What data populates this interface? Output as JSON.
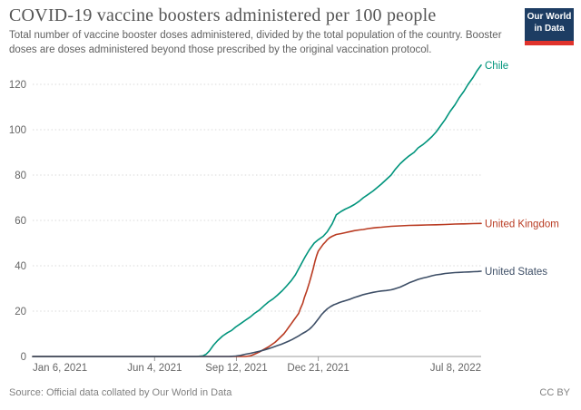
{
  "header": {
    "title": "COVID-19 vaccine boosters administered per 100 people",
    "subtitle": "Total number of vaccine booster doses administered, divided by the total population of the country. Booster doses are doses administered beyond those prescribed by the original vaccination protocol.",
    "logo": {
      "line1": "Our World",
      "line2": "in Data",
      "bg_color": "#1d3d63",
      "stripe_color": "#e0332c"
    }
  },
  "footer": {
    "source": "Source: Official data collated by Our World in Data",
    "license": "CC BY"
  },
  "chart_data": {
    "type": "line",
    "title": "COVID-19 vaccine boosters administered per 100 people",
    "xlabel": "",
    "ylabel": "",
    "ylim": [
      0,
      130
    ],
    "yticks": [
      0,
      20,
      40,
      60,
      80,
      100,
      120
    ],
    "grid": "dotted horizontal gridlines",
    "legend_position": "labels at line ends, right side",
    "x_unit": "days since Jan 6, 2021",
    "x_range_days": 548,
    "x_start_date": "Jan 6, 2021",
    "x_end_date": "Jul 8, 2022",
    "x_axis_labels": [
      {
        "label": "Jan 6, 2021",
        "day": 0,
        "anchor": "start",
        "tick": false
      },
      {
        "label": "Jun 4, 2021",
        "day": 149,
        "anchor": "middle",
        "tick": true
      },
      {
        "label": "Sep 12, 2021",
        "day": 249,
        "anchor": "middle",
        "tick": true
      },
      {
        "label": "Dec 21, 2021",
        "day": 349,
        "anchor": "middle",
        "tick": true
      },
      {
        "label": "Jul 8, 2022",
        "day": 548,
        "anchor": "end",
        "tick": false
      }
    ],
    "axis_colors": {
      "tick_label": "#666666",
      "gridline": "#dadada",
      "axis_line": "#9a9a9a"
    },
    "series": [
      {
        "name": "Chile",
        "color": "#00947C",
        "end_value": 128.5,
        "points": [
          [
            0,
            0
          ],
          [
            200,
            0
          ],
          [
            208,
            0.3
          ],
          [
            212,
            1
          ],
          [
            216,
            2.5
          ],
          [
            221,
            5
          ],
          [
            226,
            7
          ],
          [
            232,
            9
          ],
          [
            238,
            10.5
          ],
          [
            243,
            11.5
          ],
          [
            248,
            13
          ],
          [
            254,
            14.5
          ],
          [
            260,
            16
          ],
          [
            266,
            17.5
          ],
          [
            271,
            19
          ],
          [
            277,
            20.5
          ],
          [
            283,
            22.5
          ],
          [
            288,
            24
          ],
          [
            294,
            25.5
          ],
          [
            299,
            27
          ],
          [
            305,
            29
          ],
          [
            310,
            31
          ],
          [
            316,
            33.5
          ],
          [
            321,
            36
          ],
          [
            327,
            40
          ],
          [
            333,
            44
          ],
          [
            338,
            47
          ],
          [
            344,
            50
          ],
          [
            349,
            51.5
          ],
          [
            355,
            53
          ],
          [
            360,
            55
          ],
          [
            366,
            58.5
          ],
          [
            371,
            62.5
          ],
          [
            377,
            64
          ],
          [
            382,
            65
          ],
          [
            388,
            66
          ],
          [
            393,
            67
          ],
          [
            399,
            68.5
          ],
          [
            404,
            70
          ],
          [
            410,
            71.5
          ],
          [
            416,
            73
          ],
          [
            421,
            74.5
          ],
          [
            426,
            76
          ],
          [
            432,
            78
          ],
          [
            438,
            80
          ],
          [
            443,
            82.5
          ],
          [
            449,
            85
          ],
          [
            455,
            87
          ],
          [
            460,
            88.5
          ],
          [
            466,
            90
          ],
          [
            471,
            92
          ],
          [
            477,
            93.5
          ],
          [
            482,
            95
          ],
          [
            488,
            97
          ],
          [
            493,
            99
          ],
          [
            499,
            102
          ],
          [
            504,
            104.5
          ],
          [
            510,
            108
          ],
          [
            516,
            111
          ],
          [
            521,
            114
          ],
          [
            527,
            117
          ],
          [
            532,
            120
          ],
          [
            538,
            123
          ],
          [
            543,
            126
          ],
          [
            548,
            128.5
          ]
        ]
      },
      {
        "name": "United Kingdom",
        "color": "#B93B22",
        "end_value": 58.7,
        "points": [
          [
            0,
            0
          ],
          [
            260,
            0
          ],
          [
            266,
            0.3
          ],
          [
            271,
            1
          ],
          [
            274,
            1.5
          ],
          [
            277,
            2
          ],
          [
            280,
            2.6
          ],
          [
            284,
            3.4
          ],
          [
            288,
            4.2
          ],
          [
            292,
            5.2
          ],
          [
            296,
            6.2
          ],
          [
            299,
            7.2
          ],
          [
            303,
            8.6
          ],
          [
            307,
            10
          ],
          [
            310,
            11.5
          ],
          [
            313,
            13
          ],
          [
            316,
            14.5
          ],
          [
            319,
            16
          ],
          [
            322,
            17.5
          ],
          [
            325,
            19
          ],
          [
            327,
            21
          ],
          [
            330,
            23.5
          ],
          [
            332,
            26
          ],
          [
            335,
            29
          ],
          [
            338,
            32.5
          ],
          [
            340,
            35
          ],
          [
            343,
            39
          ],
          [
            345,
            42
          ],
          [
            347,
            44.5
          ],
          [
            349,
            46.5
          ],
          [
            351,
            47.5
          ],
          [
            353,
            48.5
          ],
          [
            355,
            49.5
          ],
          [
            358,
            50.6
          ],
          [
            360,
            51.5
          ],
          [
            363,
            52.4
          ],
          [
            366,
            53
          ],
          [
            371,
            53.8
          ],
          [
            377,
            54.2
          ],
          [
            382,
            54.6
          ],
          [
            388,
            55.1
          ],
          [
            393,
            55.5
          ],
          [
            399,
            55.8
          ],
          [
            404,
            56
          ],
          [
            410,
            56.4
          ],
          [
            416,
            56.7
          ],
          [
            421,
            56.9
          ],
          [
            426,
            57
          ],
          [
            432,
            57.2
          ],
          [
            438,
            57.4
          ],
          [
            449,
            57.6
          ],
          [
            460,
            57.8
          ],
          [
            471,
            57.9
          ],
          [
            482,
            58
          ],
          [
            493,
            58.1
          ],
          [
            504,
            58.2
          ],
          [
            516,
            58.4
          ],
          [
            527,
            58.5
          ],
          [
            538,
            58.6
          ],
          [
            548,
            58.7
          ]
        ]
      },
      {
        "name": "United States",
        "color": "#3D4E66",
        "end_value": 37.6,
        "points": [
          [
            0,
            0
          ],
          [
            240,
            0
          ],
          [
            248,
            0.2
          ],
          [
            254,
            0.5
          ],
          [
            260,
            1
          ],
          [
            266,
            1.4
          ],
          [
            271,
            1.8
          ],
          [
            277,
            2.3
          ],
          [
            283,
            2.9
          ],
          [
            288,
            3.4
          ],
          [
            293,
            4
          ],
          [
            299,
            4.8
          ],
          [
            304,
            5.4
          ],
          [
            308,
            6
          ],
          [
            313,
            6.8
          ],
          [
            317,
            7.5
          ],
          [
            321,
            8.3
          ],
          [
            325,
            9.1
          ],
          [
            329,
            10
          ],
          [
            334,
            11
          ],
          [
            338,
            12
          ],
          [
            341,
            13
          ],
          [
            344,
            14.2
          ],
          [
            347,
            15.6
          ],
          [
            350,
            17
          ],
          [
            353,
            18.5
          ],
          [
            356,
            19.6
          ],
          [
            360,
            21
          ],
          [
            364,
            22
          ],
          [
            368,
            22.8
          ],
          [
            371,
            23.2
          ],
          [
            375,
            23.8
          ],
          [
            379,
            24.3
          ],
          [
            382,
            24.6
          ],
          [
            388,
            25.3
          ],
          [
            393,
            26
          ],
          [
            399,
            26.7
          ],
          [
            404,
            27.3
          ],
          [
            410,
            27.8
          ],
          [
            416,
            28.3
          ],
          [
            421,
            28.6
          ],
          [
            426,
            28.9
          ],
          [
            432,
            29.1
          ],
          [
            438,
            29.4
          ],
          [
            443,
            29.9
          ],
          [
            449,
            30.6
          ],
          [
            455,
            31.6
          ],
          [
            460,
            32.5
          ],
          [
            466,
            33.3
          ],
          [
            471,
            34
          ],
          [
            477,
            34.6
          ],
          [
            482,
            35
          ],
          [
            488,
            35.6
          ],
          [
            493,
            36
          ],
          [
            499,
            36.3
          ],
          [
            504,
            36.6
          ],
          [
            510,
            36.8
          ],
          [
            516,
            37
          ],
          [
            521,
            37.1
          ],
          [
            527,
            37.2
          ],
          [
            533,
            37.3
          ],
          [
            539,
            37.4
          ],
          [
            544,
            37.5
          ],
          [
            548,
            37.6
          ]
        ]
      }
    ]
  }
}
